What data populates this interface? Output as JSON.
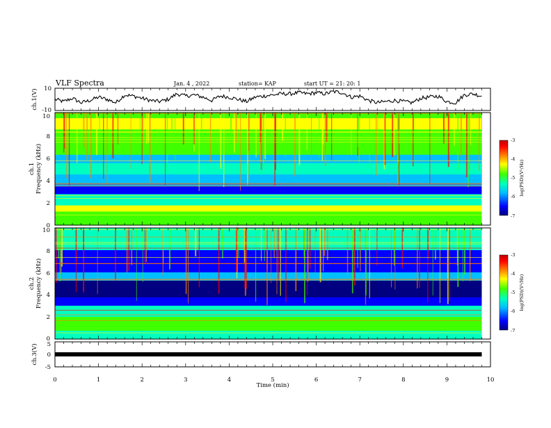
{
  "header": {
    "title": "VLF Spectra",
    "date": "Jan. 4 , 2022",
    "station": "station= KAP",
    "start": "start  UT =   21: 20: 1"
  },
  "chart_data": {
    "type": "heatmap",
    "panels": [
      {
        "id": "ch1-waveform",
        "kind": "line",
        "ylabel": "ch.1(V)",
        "ylim": [
          -10,
          10
        ],
        "yticks": [
          "10",
          "-10"
        ],
        "x": [
          0,
          0.2,
          0.4,
          0.6,
          0.8,
          1.0,
          1.2,
          1.4,
          1.6,
          1.8,
          2.0,
          2.2,
          2.4,
          2.6,
          2.8,
          3.0,
          3.2,
          3.4,
          3.6,
          3.8,
          4.0,
          4.2,
          4.4,
          4.6,
          4.8,
          5.0,
          5.2,
          5.4,
          5.6,
          5.8,
          6.0,
          6.2,
          6.4,
          6.6,
          6.8,
          7.0,
          7.2,
          7.4,
          7.6,
          7.8,
          8.0,
          8.2,
          8.4,
          8.6,
          8.8,
          9.0,
          9.2,
          9.4,
          9.6,
          9.8
        ],
        "y": [
          0,
          -2,
          1,
          -3,
          -1,
          2,
          0,
          -3,
          4,
          3,
          1,
          -1,
          -2,
          0,
          5,
          3,
          4,
          2,
          -1,
          3,
          2,
          0,
          -2,
          2,
          3,
          4,
          5,
          5,
          6,
          5,
          6,
          5,
          7,
          6,
          2,
          3,
          -1,
          -3,
          -2,
          -1,
          -2,
          -3,
          1,
          2,
          3,
          -2,
          -3,
          4,
          5,
          3
        ]
      },
      {
        "id": "ch1-spectrogram",
        "kind": "heatmap",
        "channel": "ch.1",
        "ylabel": "Frequency (kHz)",
        "ylim": [
          0,
          10
        ],
        "yticks": [
          "0",
          "2",
          "4",
          "6",
          "8",
          "10"
        ],
        "colorbar": {
          "label": "log(PSD)(V²/Hz)",
          "range": [
            -7,
            -3
          ],
          "ticks": [
            "-3",
            "-4",
            "-5",
            "-6",
            "-7"
          ]
        }
      },
      {
        "id": "ch2-spectrogram",
        "kind": "heatmap",
        "channel": "ch.2",
        "ylabel": "Frequency (kHz)",
        "ylim": [
          0,
          10
        ],
        "yticks": [
          "0",
          "2",
          "4",
          "6",
          "8",
          "10"
        ],
        "colorbar": {
          "label": "log(PSD)(V²/Hz)",
          "range": [
            -7,
            -3
          ],
          "ticks": [
            "-3",
            "-4",
            "-5",
            "-6",
            "-7"
          ]
        }
      },
      {
        "id": "ch3-waveform",
        "kind": "line",
        "ylabel": "ch.3(V)",
        "ylim": [
          -5,
          5
        ],
        "yticks": [
          "5",
          "0",
          "-5"
        ],
        "x": [
          0,
          9.8
        ],
        "y": [
          0,
          0
        ]
      }
    ],
    "xlabel": "Time  (min)",
    "xlim": [
      0,
      10
    ],
    "xticks": [
      "0",
      "1",
      "2",
      "3",
      "4",
      "5",
      "6",
      "7",
      "8",
      "9",
      "10"
    ],
    "colors": {
      "colormap": [
        "#000080",
        "#0000ff",
        "#00bfff",
        "#00ffbf",
        "#40ff00",
        "#ffff00",
        "#ff8000",
        "#ff0000",
        "#c00000"
      ]
    }
  }
}
